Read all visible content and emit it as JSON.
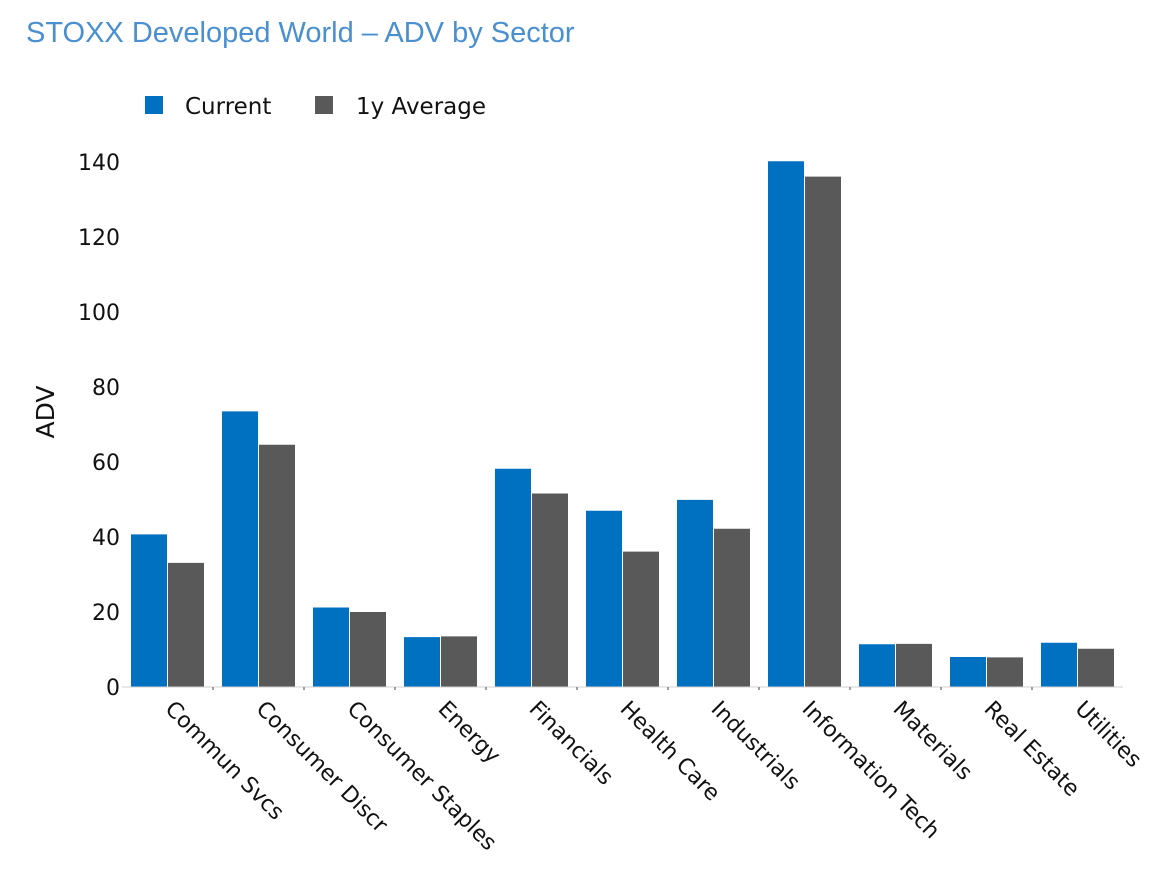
{
  "chart_data": {
    "type": "bar",
    "title": "STOXX Developed World – ADV by Sector",
    "xlabel": "",
    "ylabel": "ADV",
    "ylim": [
      0,
      140
    ],
    "yticks": [
      0,
      20,
      40,
      60,
      80,
      100,
      120,
      140
    ],
    "grid": false,
    "legend_position": "top-left",
    "categories": [
      "Commun Svcs",
      "Consumer Discr",
      "Consumer Staples",
      "Energy",
      "Financials",
      "Health Care",
      "Industrials",
      "Information Tech",
      "Materials",
      "Real Estate",
      "Utilities"
    ],
    "series": [
      {
        "name": "Current",
        "color": "#0070c0",
        "values": [
          40.7,
          73.5,
          21.2,
          13.3,
          58.2,
          47.0,
          49.9,
          140.2,
          11.4,
          8.0,
          11.8
        ]
      },
      {
        "name": "1y Average",
        "color": "#595959",
        "values": [
          33.1,
          64.6,
          20.0,
          13.5,
          51.6,
          36.1,
          42.2,
          136.1,
          11.5,
          7.9,
          10.2
        ]
      }
    ]
  }
}
